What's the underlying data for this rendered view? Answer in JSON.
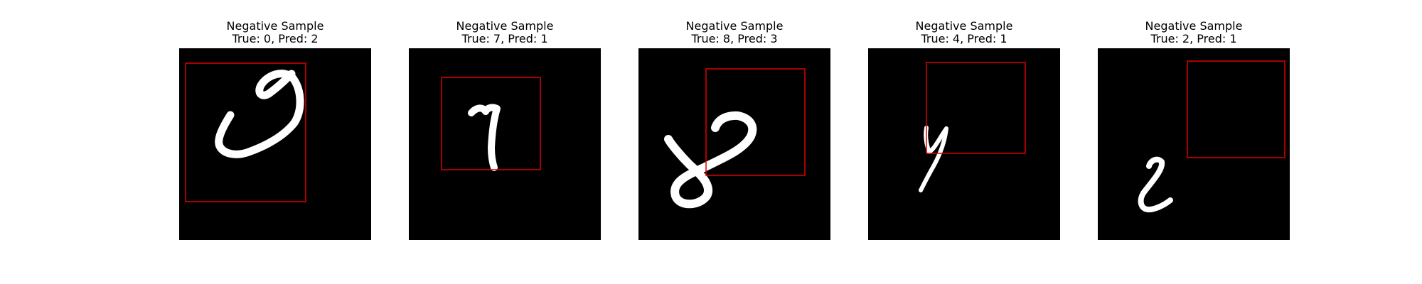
{
  "figure": {
    "panels": [
      {
        "heading": "Negative Sample",
        "caption": "True: 0, Pred: 2",
        "true_label": 0,
        "pred_label": 2,
        "digit_image": "handwritten-digit-0-image",
        "box_color": "#e00000",
        "background_color": "#000000",
        "stroke_color": "#ffffff"
      },
      {
        "heading": "Negative Sample",
        "caption": "True: 7, Pred: 1",
        "true_label": 7,
        "pred_label": 1,
        "digit_image": "handwritten-digit-7-image",
        "box_color": "#e00000",
        "background_color": "#000000",
        "stroke_color": "#ffffff"
      },
      {
        "heading": "Negative Sample",
        "caption": "True: 8, Pred: 3",
        "true_label": 8,
        "pred_label": 3,
        "digit_image": "handwritten-digit-8-image",
        "box_color": "#e00000",
        "background_color": "#000000",
        "stroke_color": "#ffffff"
      },
      {
        "heading": "Negative Sample",
        "caption": "True: 4, Pred: 1",
        "true_label": 4,
        "pred_label": 1,
        "digit_image": "handwritten-digit-4-image",
        "box_color": "#e00000",
        "background_color": "#000000",
        "stroke_color": "#ffffff"
      },
      {
        "heading": "Negative Sample",
        "caption": "True: 2, Pred: 1",
        "true_label": 2,
        "pred_label": 1,
        "digit_image": "handwritten-digit-2-image",
        "box_color": "#e00000",
        "background_color": "#000000",
        "stroke_color": "#ffffff"
      }
    ]
  }
}
